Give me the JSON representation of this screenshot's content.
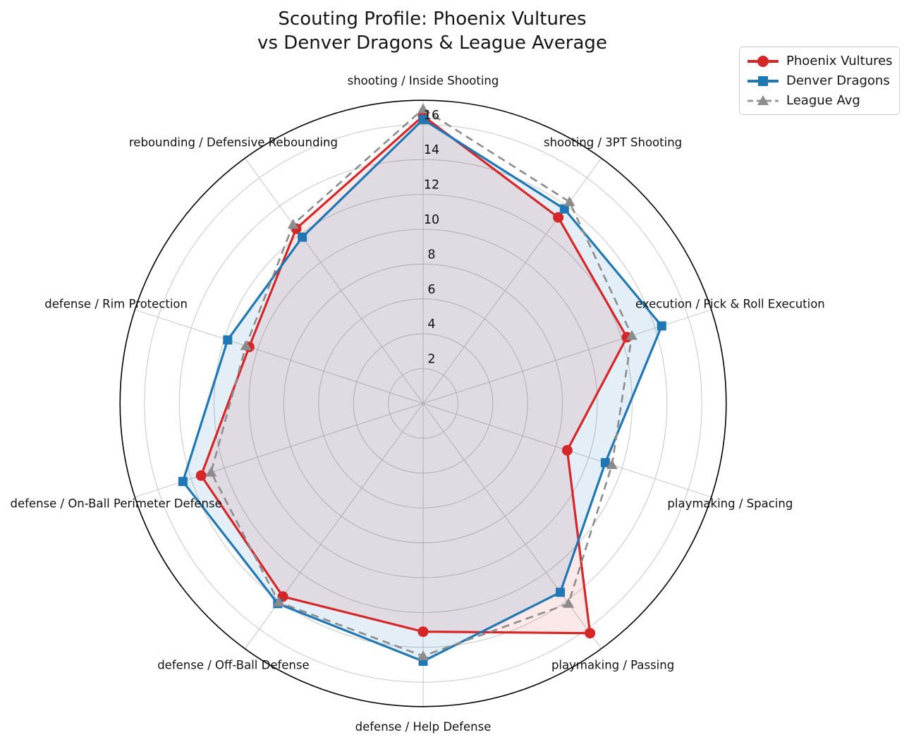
{
  "title": {
    "line1": "Scouting Profile: Phoenix Vultures",
    "line2": "vs Denver Dragons & League Average"
  },
  "legend": {
    "items": [
      {
        "label": "Phoenix Vultures",
        "color": "#d62728",
        "marker": "circle",
        "dashed": false
      },
      {
        "label": "Denver Dragons",
        "color": "#1f77b4",
        "marker": "square",
        "dashed": false
      },
      {
        "label": "League Avg",
        "color": "#8c8c8c",
        "marker": "triangle",
        "dashed": true
      }
    ]
  },
  "chart_data": {
    "type": "radar",
    "title": "Scouting Profile: Phoenix Vultures vs Denver Dragons & League Average",
    "categories": [
      "shooting / Inside Shooting",
      "shooting / 3PT Shooting",
      "execution / Pick & Roll Execution",
      "playmaking / Spacing",
      "playmaking / Passing",
      "defense / Help Defense",
      "defense / Off-Ball Defense",
      "defense / On-Ball Perimeter Defense",
      "defense / Rim Protection",
      "rebounding / Defensive Rebounding"
    ],
    "series": [
      {
        "name": "Phoenix Vultures",
        "color": "#d62728",
        "marker": "circle",
        "dashed": false,
        "fill_opacity": 0.1,
        "values": [
          16.5,
          13.2,
          12.3,
          8.7,
          16.3,
          13.1,
          13.7,
          13.4,
          10.5,
          12.4
        ]
      },
      {
        "name": "Denver Dragons",
        "color": "#1f77b4",
        "marker": "square",
        "dashed": false,
        "fill_opacity": 0.12,
        "values": [
          16.3,
          13.8,
          14.4,
          11.0,
          13.4,
          14.8,
          14.2,
          14.5,
          11.8,
          11.8
        ]
      },
      {
        "name": "League Avg",
        "color": "#8c8c8c",
        "marker": "triangle",
        "dashed": true,
        "fill_opacity": 0,
        "values": [
          16.9,
          14.3,
          12.6,
          11.4,
          14.2,
          14.5,
          14.1,
          12.8,
          10.7,
          12.7
        ]
      }
    ],
    "ticks": [
      2,
      4,
      6,
      8,
      10,
      12,
      14,
      16
    ],
    "rmax": 17.4,
    "grid_on": true,
    "grid_color": "#c6c6c6",
    "spine_color": "#000000",
    "legend_position": "upper right"
  }
}
